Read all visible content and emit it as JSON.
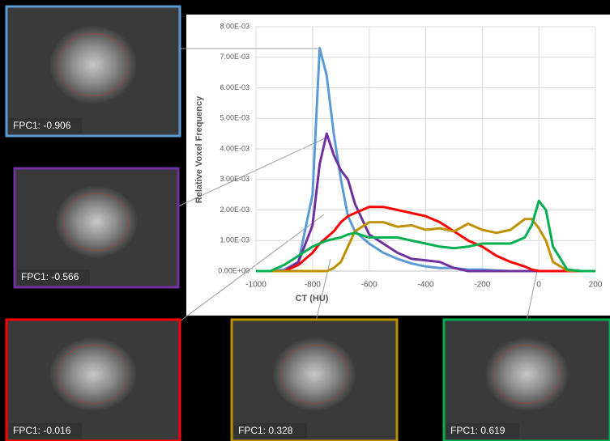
{
  "chart_data": {
    "type": "line",
    "x_label": "CT (HU)",
    "y_label": "Relative Voxel Frequency",
    "x": [
      -1000,
      -950,
      -900,
      -850,
      -800,
      -775,
      -750,
      -725,
      -700,
      -675,
      -650,
      -600,
      -550,
      -500,
      -450,
      -400,
      -350,
      -300,
      -250,
      -200,
      -150,
      -100,
      -50,
      -25,
      0,
      25,
      50,
      100,
      150,
      200
    ],
    "xlim": [
      -1000,
      200
    ],
    "xticks": [
      -1000,
      -800,
      -600,
      -400,
      -200,
      0,
      200
    ],
    "ylim": [
      0,
      0.008
    ],
    "yticks": [
      {
        "value": 0,
        "label": "0.00E+00"
      },
      {
        "value": 0.001,
        "label": "1.00E-03"
      },
      {
        "value": 0.002,
        "label": "2.00E-03"
      },
      {
        "value": 0.003,
        "label": "3.00E-03"
      },
      {
        "value": 0.004,
        "label": "4.00E-03"
      },
      {
        "value": 0.005,
        "label": "5.00E-03"
      },
      {
        "value": 0.006,
        "label": "6.00E-03"
      },
      {
        "value": 0.007,
        "label": "7.00E-03"
      },
      {
        "value": 0.008,
        "label": "8.00E-03"
      }
    ],
    "grid": true,
    "series": [
      {
        "name": "FPC1: -0.906",
        "color": "#5b9bd5",
        "values": [
          0,
          0,
          5e-05,
          0.0003,
          0.0025,
          0.0073,
          0.0064,
          0.0045,
          0.003,
          0.0018,
          0.0013,
          0.0009,
          0.0006,
          0.0004,
          0.00025,
          0.00015,
          0.0001,
          0.0001,
          5e-05,
          5e-05,
          2e-05,
          0,
          0,
          0,
          0,
          0,
          0,
          0,
          0,
          0
        ]
      },
      {
        "name": "FPC1: -0.566",
        "color": "#7030a0",
        "values": [
          0,
          0,
          0,
          0.0003,
          0.0015,
          0.0035,
          0.0045,
          0.0038,
          0.0033,
          0.003,
          0.0022,
          0.0012,
          0.0009,
          0.0006,
          0.0004,
          0.00035,
          0.0003,
          0.0001,
          0,
          0,
          0,
          0,
          0,
          0,
          0,
          0,
          0,
          0,
          0,
          0
        ]
      },
      {
        "name": "FPC1: -0.016",
        "color": "#ff0000",
        "values": [
          0,
          0,
          0,
          0.0002,
          0.0006,
          0.0009,
          0.0011,
          0.0013,
          0.0016,
          0.0018,
          0.0019,
          0.0021,
          0.0021,
          0.002,
          0.0019,
          0.0018,
          0.0016,
          0.0013,
          0.001,
          0.0008,
          0.0005,
          0.0003,
          0.00015,
          5e-05,
          0,
          0,
          0,
          0,
          0,
          0
        ]
      },
      {
        "name": "FPC1: 0.328",
        "color": "#bf9000",
        "values": [
          0,
          0,
          0,
          0,
          0,
          0,
          0,
          0.0001,
          0.0003,
          0.0008,
          0.0013,
          0.0016,
          0.0016,
          0.00145,
          0.0015,
          0.00135,
          0.0014,
          0.0013,
          0.00155,
          0.00135,
          0.00125,
          0.00135,
          0.0017,
          0.0017,
          0.0014,
          0.001,
          0.0003,
          2e-05,
          0,
          0
        ]
      },
      {
        "name": "FPC1: 0.619",
        "color": "#00b050",
        "values": [
          0,
          0,
          0.0002,
          0.0005,
          0.0008,
          0.0009,
          0.001,
          0.00105,
          0.0011,
          0.0012,
          0.00125,
          0.0011,
          0.0011,
          0.0011,
          0.001,
          0.0009,
          0.0008,
          0.00075,
          0.0008,
          0.0009,
          0.0009,
          0.0009,
          0.0011,
          0.0015,
          0.0023,
          0.002,
          0.0008,
          5e-05,
          0,
          0
        ]
      }
    ]
  }
}
